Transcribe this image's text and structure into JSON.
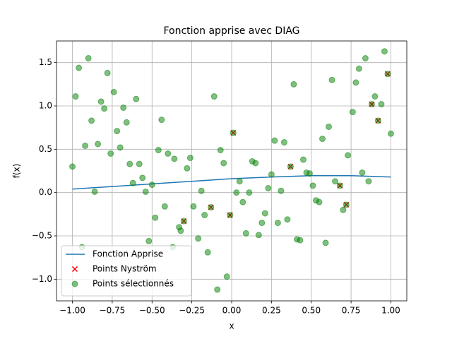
{
  "chart_data": {
    "type": "scatter",
    "title": "Fonction apprise avec DIAG",
    "x_label": "x",
    "y_label": "f(x)",
    "xlim": [
      -1.1,
      1.1
    ],
    "ylim": [
      -1.25,
      1.75
    ],
    "xticks": [
      {
        "value": -1,
        "label": "−1.00"
      },
      {
        "value": -0.75,
        "label": "−0.75"
      },
      {
        "value": -0.5,
        "label": "−0.50"
      },
      {
        "value": -0.25,
        "label": "−0.25"
      },
      {
        "value": 0,
        "label": "0.00"
      },
      {
        "value": 0.25,
        "label": "0.25"
      },
      {
        "value": 0.5,
        "label": "0.50"
      },
      {
        "value": 0.75,
        "label": "0.75"
      },
      {
        "value": 1,
        "label": "1.00"
      }
    ],
    "yticks": [
      {
        "value": -1,
        "label": "−1.0"
      },
      {
        "value": -0.5,
        "label": "−0.5"
      },
      {
        "value": 0,
        "label": "0.0"
      },
      {
        "value": 0.5,
        "label": "0.5"
      },
      {
        "value": 1,
        "label": "1.0"
      },
      {
        "value": 1.5,
        "label": "1.5"
      }
    ],
    "grid": true,
    "legend": "lower left",
    "series": [
      {
        "name": "Fonction Apprise",
        "type": "line",
        "color": "#1f77b4",
        "x": [
          -1,
          -0.75,
          -0.5,
          -0.25,
          0,
          0.25,
          0.5,
          0.75,
          1
        ],
        "values": [
          0.04,
          0.07,
          0.1,
          0.13,
          0.16,
          0.18,
          0.195,
          0.195,
          0.18
        ]
      },
      {
        "name": "Points Nyström",
        "type": "scatter",
        "marker": "x",
        "color": "#ff0000",
        "x": [
          -0.3,
          -0.13,
          -0.01,
          0.01,
          0.37,
          0.68,
          0.72,
          0.88,
          0.92,
          0.98
        ],
        "values": [
          -0.33,
          -0.17,
          -0.26,
          0.69,
          0.3,
          0.08,
          -0.14,
          1.02,
          0.83,
          1.37
        ]
      },
      {
        "name": "Points sélectionnés",
        "type": "scatter",
        "marker": "o",
        "color": "#008000",
        "x": [
          -1,
          -0.98,
          -0.96,
          -0.94,
          -0.92,
          -0.9,
          -0.88,
          -0.86,
          -0.84,
          -0.82,
          -0.8,
          -0.78,
          -0.76,
          -0.74,
          -0.72,
          -0.7,
          -0.68,
          -0.66,
          -0.64,
          -0.62,
          -0.6,
          -0.58,
          -0.56,
          -0.54,
          -0.52,
          -0.5,
          -0.48,
          -0.46,
          -0.44,
          -0.42,
          -0.4,
          -0.37,
          -0.36,
          -0.33,
          -0.32,
          -0.3,
          -0.28,
          -0.26,
          -0.24,
          -0.21,
          -0.19,
          -0.17,
          -0.15,
          -0.13,
          -0.11,
          -0.09,
          -0.07,
          -0.05,
          -0.03,
          -0.01,
          0.01,
          0.03,
          0.05,
          0.07,
          0.09,
          0.11,
          0.13,
          0.15,
          0.17,
          0.19,
          0.21,
          0.23,
          0.25,
          0.27,
          0.29,
          0.31,
          0.33,
          0.35,
          0.37,
          0.39,
          0.41,
          0.43,
          0.45,
          0.47,
          0.49,
          0.51,
          0.53,
          0.55,
          0.57,
          0.59,
          0.61,
          0.63,
          0.65,
          0.68,
          0.7,
          0.72,
          0.73,
          0.76,
          0.78,
          0.8,
          0.82,
          0.84,
          0.86,
          0.88,
          0.9,
          0.92,
          0.94,
          0.96,
          0.98,
          1
        ],
        "values": [
          0.3,
          1.11,
          1.44,
          -0.63,
          0.54,
          1.55,
          0.83,
          0.01,
          0.56,
          1.05,
          0.97,
          1.38,
          0.45,
          1.16,
          0.71,
          0.52,
          0.98,
          0.81,
          0.33,
          0.11,
          1.08,
          0.33,
          0.17,
          0.01,
          -0.56,
          0.09,
          -0.29,
          0.49,
          0.84,
          -0.16,
          0.45,
          -0.63,
          0.39,
          -0.4,
          -0.44,
          -0.33,
          0.28,
          0.4,
          -0.16,
          -0.53,
          0.02,
          -0.26,
          -0.69,
          -0.17,
          1.11,
          -1.12,
          0.49,
          0.34,
          -0.97,
          -0.26,
          0.69,
          0,
          0.13,
          -0.11,
          -0.47,
          0,
          0.36,
          0.34,
          -0.49,
          -0.35,
          -0.24,
          0.05,
          0.21,
          0.6,
          -0.35,
          0.02,
          0.58,
          -0.31,
          0.3,
          1.25,
          -0.54,
          -0.55,
          0.38,
          0.23,
          0.22,
          0.08,
          -0.09,
          -0.11,
          0.62,
          -0.58,
          0.76,
          1.3,
          0.13,
          0.08,
          -0.2,
          -0.14,
          0.43,
          0.93,
          1.27,
          1.43,
          0.23,
          1.55,
          0.13,
          1.02,
          1.11,
          0.83,
          1.02,
          1.63,
          1.37,
          0.68
        ]
      }
    ]
  }
}
